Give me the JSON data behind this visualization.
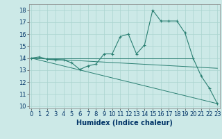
{
  "line1_x": [
    0,
    1,
    2,
    3,
    4,
    5,
    6,
    7,
    8,
    9,
    10,
    11,
    12,
    13,
    14,
    15,
    16,
    17,
    18,
    19,
    20,
    21,
    22,
    23
  ],
  "line1_y": [
    14.0,
    14.1,
    13.9,
    13.85,
    13.85,
    13.6,
    13.05,
    13.35,
    13.5,
    14.35,
    14.35,
    15.8,
    16.0,
    14.35,
    15.1,
    18.0,
    17.1,
    17.1,
    17.1,
    16.1,
    14.0,
    12.5,
    11.5,
    10.2
  ],
  "line2_x": [
    0,
    20
  ],
  "line2_y": [
    14.0,
    14.0
  ],
  "line3_x": [
    0,
    23
  ],
  "line3_y": [
    14.0,
    10.2
  ],
  "line4_x": [
    0,
    23
  ],
  "line4_y": [
    14.0,
    13.15
  ],
  "color": "#2a7f72",
  "bg_color": "#cce9e7",
  "grid_color": "#aad4d0",
  "xlabel": "Humidex (Indice chaleur)",
  "ylim": [
    9.8,
    18.5
  ],
  "xlim": [
    -0.3,
    23.3
  ],
  "yticks": [
    10,
    11,
    12,
    13,
    14,
    15,
    16,
    17,
    18
  ],
  "xticks": [
    0,
    1,
    2,
    3,
    4,
    5,
    6,
    7,
    8,
    9,
    10,
    11,
    12,
    13,
    14,
    15,
    16,
    17,
    18,
    19,
    20,
    21,
    22,
    23
  ],
  "xlabel_fontsize": 7.0,
  "tick_fontsize": 6.0,
  "lw_main": 0.8,
  "lw_other": 0.7
}
